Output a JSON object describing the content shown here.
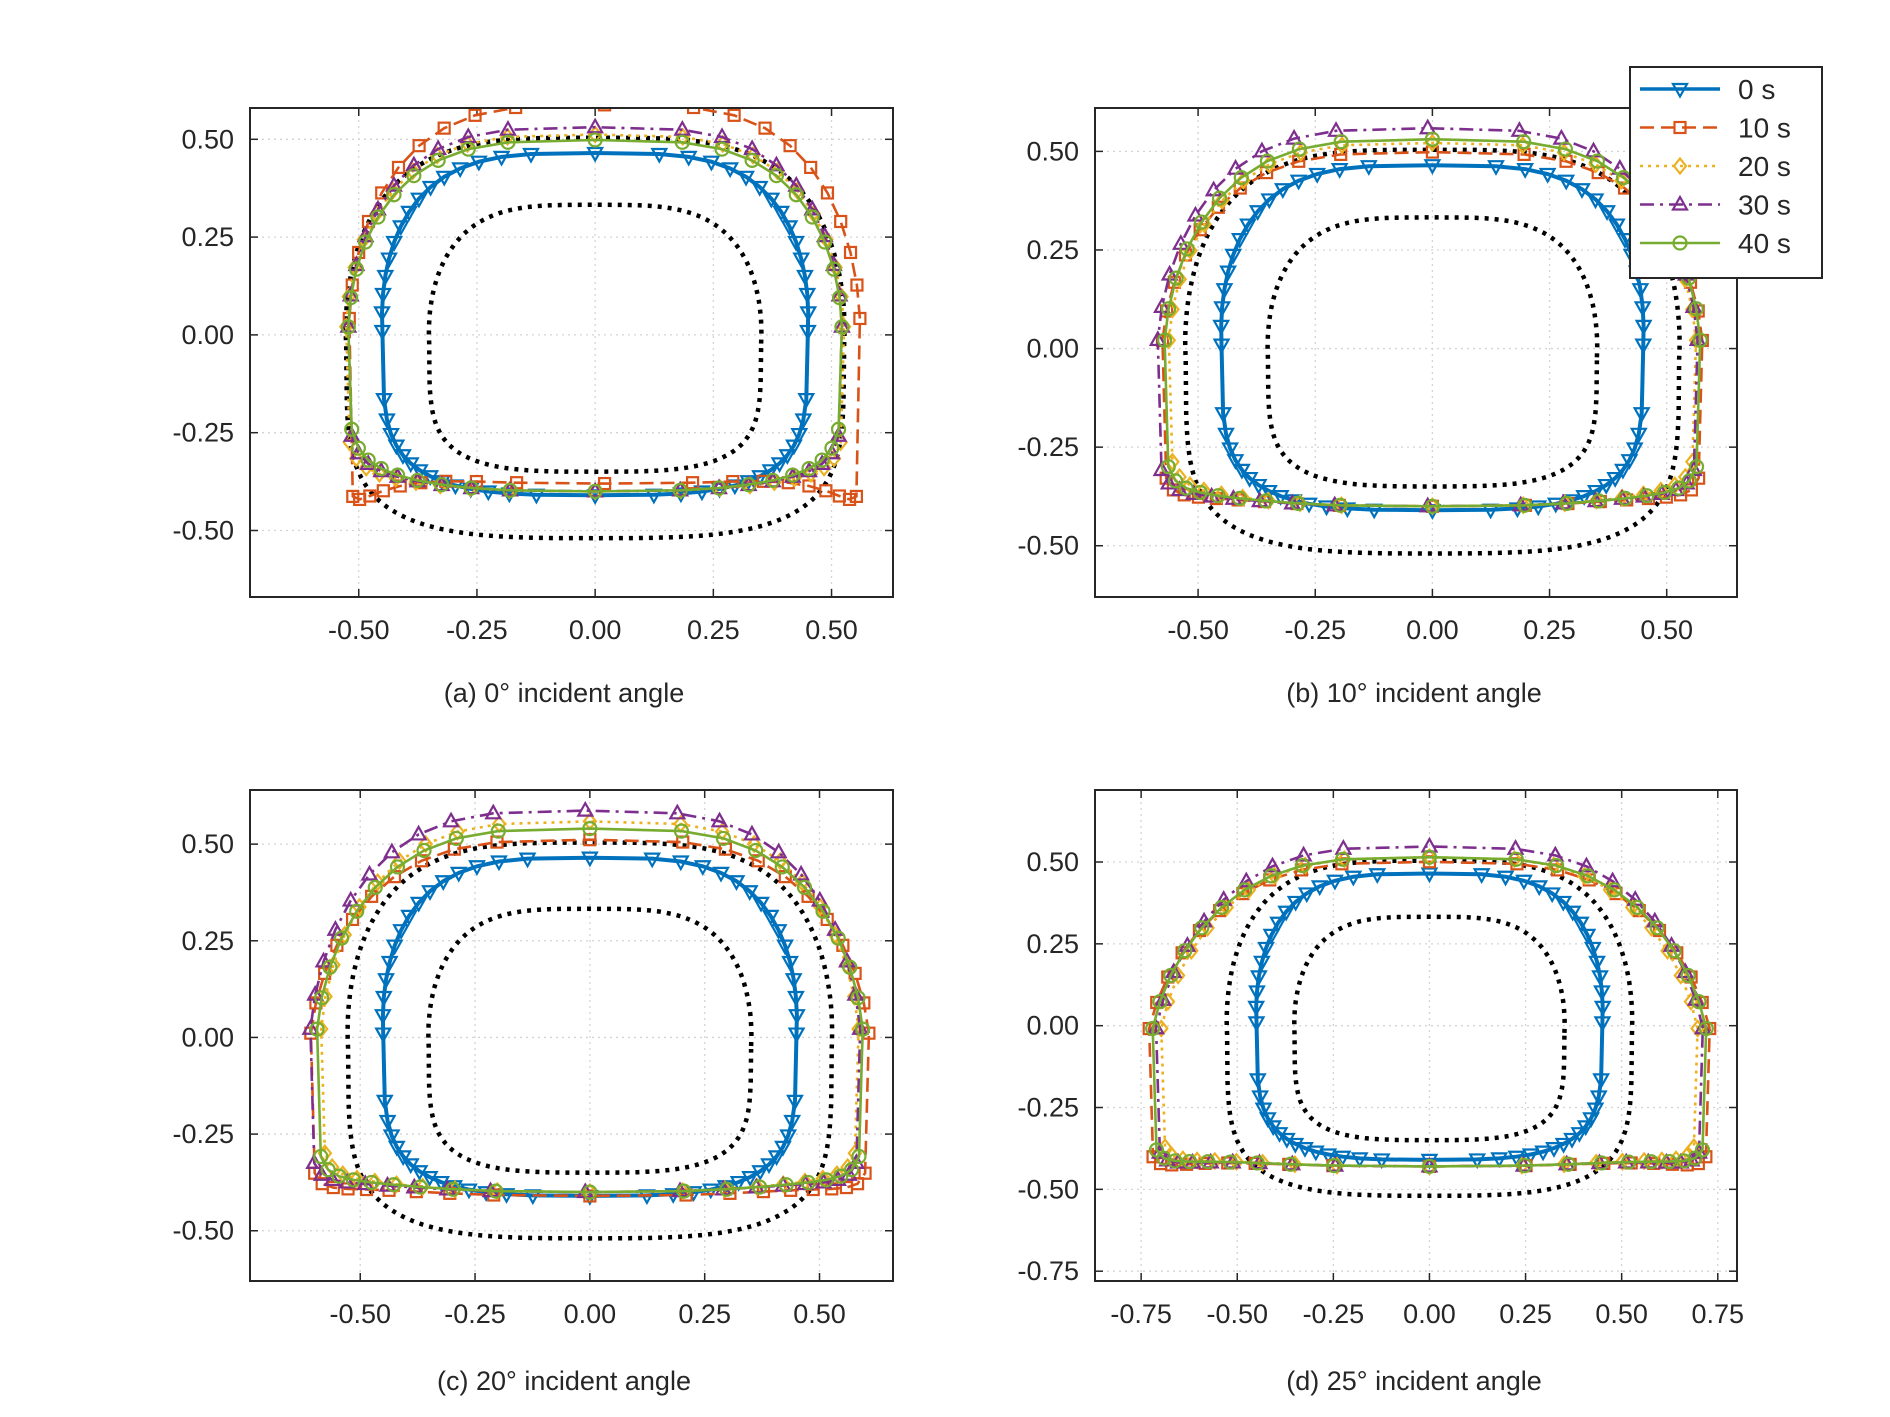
{
  "legend": {
    "placement": "top-right",
    "entries": [
      {
        "label": "0 s",
        "color": "#0072BD",
        "marker": "triangle-down",
        "line": "solid"
      },
      {
        "label": "10 s",
        "color": "#D95319",
        "marker": "square",
        "line": "dashed"
      },
      {
        "label": "20 s",
        "color": "#EDB120",
        "marker": "diamond",
        "line": "dotted"
      },
      {
        "label": "30 s",
        "color": "#7E2F8E",
        "marker": "triangle-up",
        "line": "dashdot"
      },
      {
        "label": "40 s",
        "color": "#77AC30",
        "marker": "circle",
        "line": "solid"
      }
    ]
  },
  "boundary_color": "#000000",
  "chart_data": [
    {
      "type": "line",
      "caption": "(a) 0° incident angle",
      "xlim": [
        -0.73,
        0.63
      ],
      "ylim": [
        -0.67,
        0.58
      ],
      "xticks": [
        "-0.50",
        "-0.25",
        "0.00",
        "0.25",
        "0.50"
      ],
      "yticks": [
        "0.50",
        "0.25",
        "0.00",
        "-0.25",
        "-0.50"
      ],
      "grid": true,
      "deform": {
        "10 s": {
          "xcx": 1.2,
          "xsx": 0.4,
          "ysx": 0.6,
          "ycx": 1.2,
          "dx": 0.02,
          "dy": 0.03
        },
        "20 s": {
          "xcx": 1.17,
          "xsx": 0.12,
          "ysx": 0.22,
          "ycx": 1.08,
          "dx": 0.0,
          "dy": 0.01
        },
        "30 s": {
          "xcx": 1.16,
          "xsx": 0.1,
          "ysx": 0.18,
          "ycx": 1.12,
          "dx": 0.0,
          "dy": 0.01
        },
        "40 s": {
          "xcx": 1.16,
          "xsx": 0.1,
          "ysx": 0.14,
          "ycx": 1.05,
          "dx": 0.0,
          "dy": 0.01
        }
      }
    },
    {
      "type": "line",
      "caption": "(b) 10° incident angle",
      "xlim": [
        -0.72,
        0.65
      ],
      "ylim": [
        -0.63,
        0.61
      ],
      "xticks": [
        "-0.50",
        "-0.25",
        "0.00",
        "0.25",
        "0.50"
      ],
      "yticks": [
        "0.50",
        "0.25",
        "0.00",
        "-0.25",
        "-0.50"
      ],
      "grid": true,
      "deform": {
        "10 s": {
          "xcx": 1.28,
          "xsx": 0.2,
          "ysx": 0.35,
          "ycx": 1.05,
          "dx": 0.0,
          "dy": 0.01
        },
        "20 s": {
          "xcx": 1.25,
          "xsx": 0.1,
          "ysx": 0.25,
          "ycx": 1.1,
          "dx": 0.0,
          "dy": 0.01
        },
        "30 s": {
          "xcx": 1.28,
          "xsx": 0.12,
          "ysx": 0.3,
          "ycx": 1.18,
          "dx": -0.01,
          "dy": 0.01
        },
        "40 s": {
          "xcx": 1.27,
          "xsx": 0.08,
          "ysx": 0.28,
          "ycx": 1.12,
          "dx": 0.0,
          "dy": 0.01
        }
      }
    },
    {
      "type": "line",
      "caption": "(c) 20° incident angle",
      "xlim": [
        -0.74,
        0.66
      ],
      "ylim": [
        -0.63,
        0.64
      ],
      "xticks": [
        "-0.50",
        "-0.25",
        "0.00",
        "0.25",
        "0.50"
      ],
      "yticks": [
        "0.50",
        "0.25",
        "0.00",
        "-0.25",
        "-0.50"
      ],
      "grid": true,
      "deform": {
        "10 s": {
          "xcx": 1.35,
          "xsx": 0.25,
          "ysx": 0.38,
          "ycx": 1.1,
          "dx": 0.0,
          "dy": 0.0
        },
        "20 s": {
          "xcx": 1.3,
          "xsx": 0.1,
          "ysx": 0.28,
          "ycx": 1.18,
          "dx": 0.0,
          "dy": 0.01
        },
        "30 s": {
          "xcx": 1.33,
          "xsx": 0.12,
          "ysx": 0.34,
          "ycx": 1.24,
          "dx": -0.01,
          "dy": 0.01
        },
        "40 s": {
          "xcx": 1.32,
          "xsx": 0.1,
          "ysx": 0.3,
          "ycx": 1.14,
          "dx": 0.0,
          "dy": 0.01
        }
      }
    },
    {
      "type": "line",
      "caption": "(d) 25° incident angle",
      "xlim": [
        -0.87,
        0.8
      ],
      "ylim": [
        -0.78,
        0.72
      ],
      "xticks": [
        "-0.75",
        "-0.50",
        "-0.25",
        "0.00",
        "0.25",
        "0.50",
        "0.75"
      ],
      "yticks": [
        "0.50",
        "0.25",
        "0.00",
        "-0.25",
        "-0.50",
        "-0.75"
      ],
      "grid": true,
      "deform": {
        "10 s": {
          "xcx": 1.62,
          "xsx": 0.2,
          "ysx": 0.45,
          "ycx": 1.12,
          "dx": 0.0,
          "dy": -0.02
        },
        "20 s": {
          "xcx": 1.55,
          "xsx": 0.12,
          "ysx": 0.38,
          "ycx": 1.15,
          "dx": 0.0,
          "dy": -0.02
        },
        "30 s": {
          "xcx": 1.58,
          "xsx": 0.14,
          "ysx": 0.42,
          "ycx": 1.22,
          "dx": 0.0,
          "dy": -0.02
        },
        "40 s": {
          "xcx": 1.6,
          "xsx": 0.1,
          "ysx": 0.4,
          "ycx": 1.15,
          "dx": 0.0,
          "dy": -0.02
        }
      }
    }
  ]
}
